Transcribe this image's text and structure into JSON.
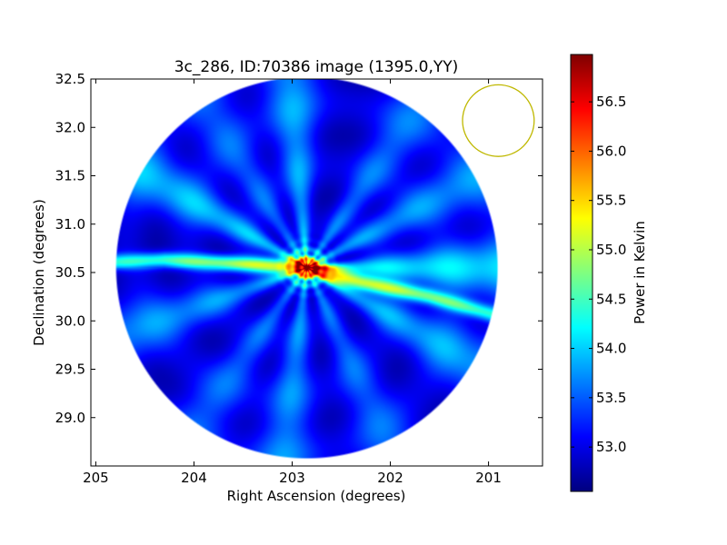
{
  "chart_data": {
    "type": "heatmap",
    "title": "3c_286, ID:70386 image (1395.0,YY)",
    "xlabel": "Right Ascension (degrees)",
    "ylabel": "Declination (degrees)",
    "xlim": [
      205.05,
      200.45
    ],
    "ylim": [
      28.5,
      32.5
    ],
    "x_inverted": true,
    "x_ticks": [
      205,
      204,
      203,
      202,
      201
    ],
    "x_tick_labels": [
      "205",
      "204",
      "203",
      "202",
      "201"
    ],
    "y_ticks": [
      29.0,
      29.5,
      30.0,
      30.5,
      31.0,
      31.5,
      32.0,
      32.5
    ],
    "y_tick_labels": [
      "29.0",
      "29.5",
      "30.0",
      "30.5",
      "31.0",
      "31.5",
      "32.0",
      "32.5"
    ],
    "colorbar": {
      "label": "Power in Kelvin",
      "range": [
        52.55,
        56.98
      ],
      "ticks": [
        53.0,
        53.5,
        54.0,
        54.5,
        55.0,
        55.5,
        56.0,
        56.5
      ],
      "tick_labels": [
        "53.0",
        "53.5",
        "54.0",
        "54.5",
        "55.0",
        "55.5",
        "56.0",
        "56.5"
      ],
      "colormap": "jet"
    },
    "field": {
      "center": [
        202.85,
        30.55
      ],
      "radius_dec_deg": 1.98,
      "background": 52.85,
      "spokes": [
        {
          "angle_deg": 0,
          "amp": 1.25
        },
        {
          "angle_deg": 28,
          "amp": 0.9
        },
        {
          "angle_deg": 55,
          "amp": 0.75
        },
        {
          "angle_deg": 95,
          "amp": 0.95
        },
        {
          "angle_deg": 122,
          "amp": 0.7
        },
        {
          "angle_deg": 150,
          "amp": 1.1
        },
        {
          "angle_deg": 200,
          "amp": 0.9
        },
        {
          "angle_deg": 235,
          "amp": 0.7
        },
        {
          "angle_deg": 263,
          "amp": 0.85
        },
        {
          "angle_deg": 295,
          "amp": 0.7
        },
        {
          "angle_deg": 330,
          "amp": 1.0
        }
      ],
      "ridge": {
        "points": [
          [
            205.0,
            30.6
          ],
          [
            204.3,
            30.63
          ],
          [
            203.2,
            30.57
          ],
          [
            202.85,
            30.55
          ],
          [
            202.3,
            30.4
          ],
          [
            201.6,
            30.25
          ],
          [
            200.9,
            30.05
          ]
        ],
        "peak": 56.1
      },
      "core_peak": 56.8
    },
    "beam": {
      "ra": 200.9,
      "dec": 32.07,
      "radius_dec_deg": 0.37,
      "color": "#bfb800"
    }
  }
}
